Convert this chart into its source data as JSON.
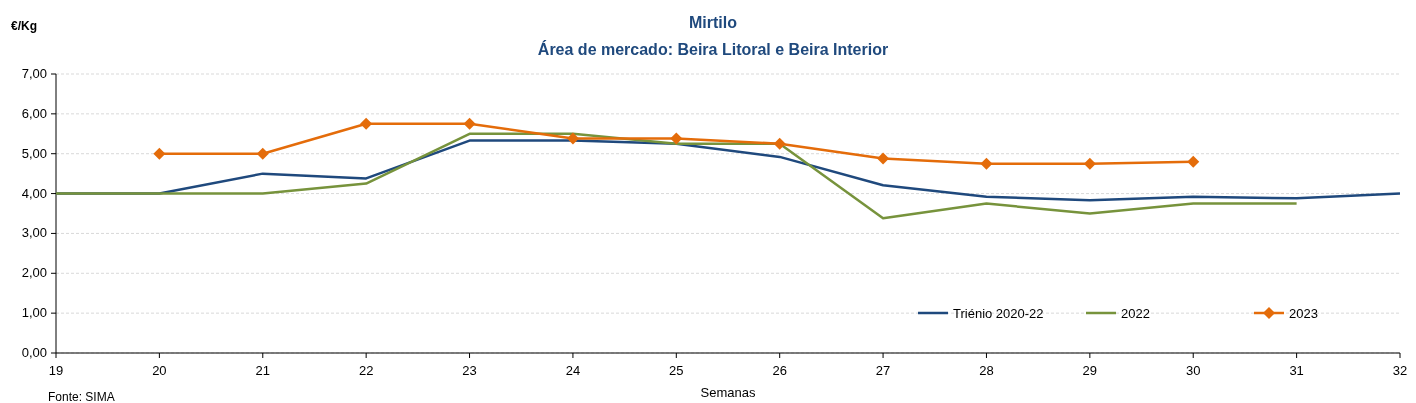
{
  "chart_data": {
    "type": "line",
    "title": "Mirtilo",
    "subtitle": "Área de mercado: Beira Litoral e Beira Interior",
    "ylabel": "€/Kg",
    "xlabel": "Semanas",
    "annotations": [
      "Fonte: SIMA"
    ],
    "x": [
      19,
      20,
      21,
      22,
      23,
      24,
      25,
      26,
      27,
      28,
      29,
      30,
      31,
      32
    ],
    "xlim": [
      19,
      32
    ],
    "xticks": [
      19,
      20,
      21,
      22,
      23,
      24,
      25,
      26,
      27,
      28,
      29,
      30,
      31,
      32
    ],
    "ylim": [
      0,
      7
    ],
    "yticks": [
      {
        "value": 0,
        "label": "0,00"
      },
      {
        "value": 1,
        "label": "1,00"
      },
      {
        "value": 2,
        "label": "2,00"
      },
      {
        "value": 3,
        "label": "3,00"
      },
      {
        "value": 4,
        "label": "4,00"
      },
      {
        "value": 5,
        "label": "5,00"
      },
      {
        "value": 6,
        "label": "6,00"
      },
      {
        "value": 7,
        "label": "7,00"
      }
    ],
    "grid": "y",
    "legend": "bottom right",
    "line_style": "solid",
    "series": [
      {
        "name": "Triénio 2020-22",
        "color": "#1f497d",
        "marker": "none",
        "values": [
          4.0,
          4.0,
          4.5,
          4.38,
          5.33,
          5.33,
          5.25,
          4.92,
          4.21,
          3.92,
          3.83,
          3.92,
          3.88,
          4.0
        ]
      },
      {
        "name": "2022",
        "color": "#77933c",
        "marker": "none",
        "values": [
          4.0,
          4.0,
          4.0,
          4.25,
          5.5,
          5.5,
          5.25,
          5.25,
          3.38,
          3.75,
          3.5,
          3.75,
          3.75,
          null
        ]
      },
      {
        "name": "2023",
        "color": "#e46c0a",
        "marker": "diamond",
        "values": [
          null,
          5.0,
          5.0,
          5.75,
          5.75,
          5.38,
          5.38,
          5.25,
          4.88,
          4.75,
          4.75,
          4.8,
          null,
          null
        ]
      }
    ]
  }
}
